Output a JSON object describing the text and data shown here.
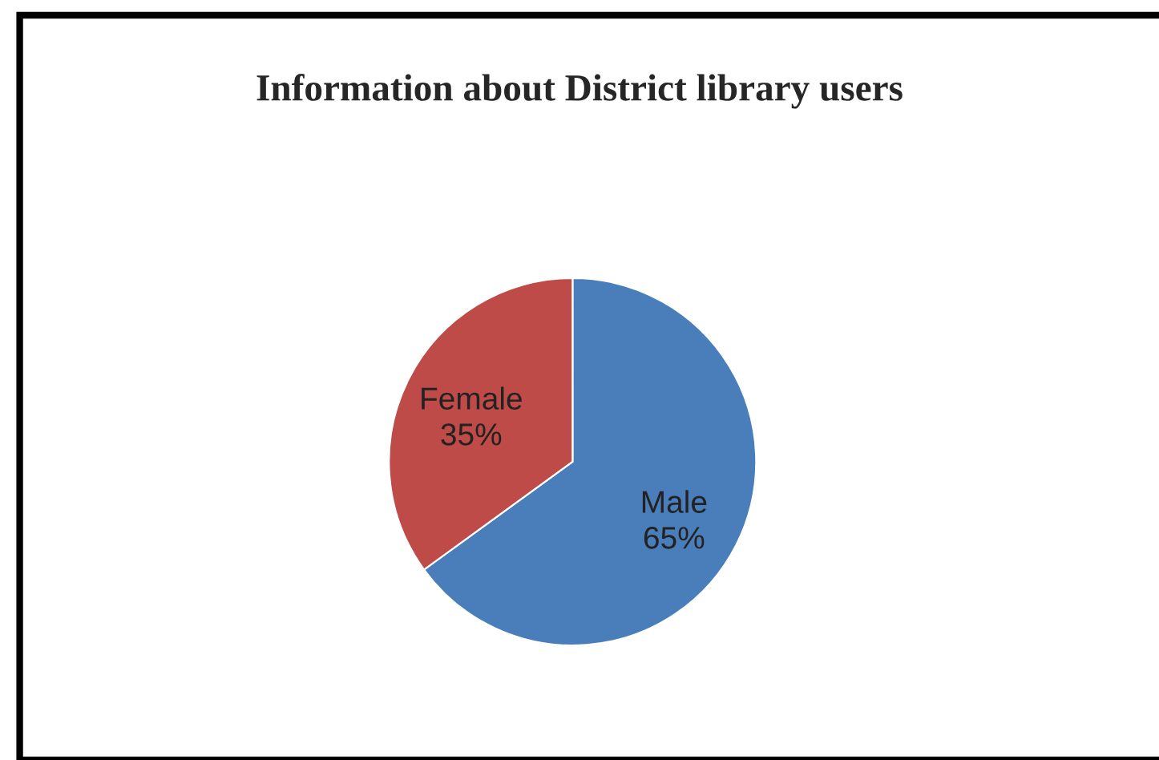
{
  "chart_data": {
    "type": "pie",
    "title": "Information about District library users",
    "categories": [
      "Male",
      "Female"
    ],
    "values": [
      65,
      35
    ],
    "colors": [
      "#4a7ebb",
      "#be4b48"
    ],
    "value_labels": [
      "65%",
      "35%"
    ],
    "legend": false
  }
}
